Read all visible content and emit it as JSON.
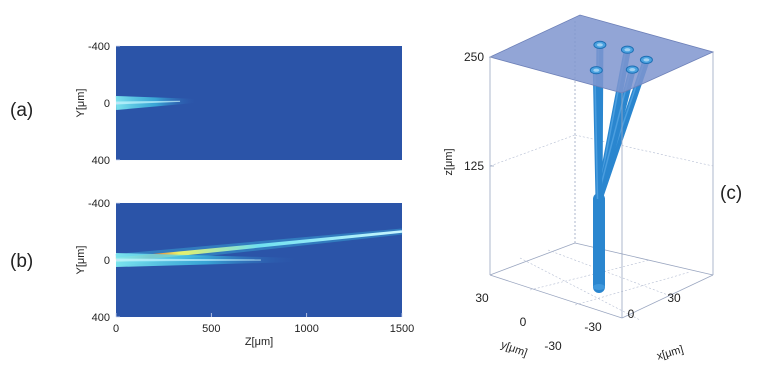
{
  "panel_labels": {
    "a": "(a)",
    "b": "(b)",
    "c": "(c)"
  },
  "colors": {
    "field_background": "#2b54a8",
    "field_low": "#2e64b8",
    "field_mid": "#3ec6e8",
    "field_high": "#e8f06a",
    "field_peak": "#e86a2a",
    "cylinder": "#2a86cf",
    "cylinder_cap": "#4ba2e0",
    "top_plane": "#7f95cf",
    "grid_line": "#8a98b8"
  },
  "chart_data": [
    {
      "id": "a",
      "type": "heatmap",
      "ylabel": "Y[μm]",
      "xlabel": "",
      "y_ticks": [
        "-400",
        "0",
        "400"
      ],
      "x_ticks": [],
      "xlim": [
        0,
        1500
      ],
      "ylim": [
        -400,
        400
      ],
      "beams": [
        {
          "x_start": 0,
          "y_start": 0,
          "x_end": 420,
          "y_end": -15,
          "intensity": "low"
        }
      ]
    },
    {
      "id": "b",
      "type": "heatmap",
      "ylabel": "Y[μm]",
      "xlabel": "Z[μm]",
      "y_ticks": [
        "-400",
        "0",
        "400"
      ],
      "x_ticks": [
        "0",
        "500",
        "1000",
        "1500"
      ],
      "xlim": [
        0,
        1500
      ],
      "ylim": [
        -400,
        400
      ],
      "beams": [
        {
          "x_start": 0,
          "y_start": 0,
          "x_end": 1500,
          "y_end": -200,
          "intensity": "high"
        },
        {
          "x_start": 0,
          "y_start": 0,
          "x_end": 950,
          "y_end": 0,
          "intensity": "low"
        }
      ]
    },
    {
      "id": "c",
      "type": "3d-waveguides",
      "zlabel": "z[μm]",
      "xlabel": "x[μm]",
      "ylabel": "y[μm]",
      "z_ticks": [
        "250",
        "125"
      ],
      "x_ticks": [
        "-30",
        "0",
        "30"
      ],
      "y_ticks": [
        "30",
        "0",
        "-30"
      ],
      "zlim": [
        0,
        250
      ],
      "xlim": [
        -30,
        30
      ],
      "ylim": [
        -30,
        30
      ],
      "common_stem": {
        "x": 0,
        "y": 0,
        "z_from": 0,
        "z_to": 100
      },
      "branch_endpoints": [
        {
          "x": -20,
          "y": 22,
          "z": 250
        },
        {
          "x": -6,
          "y": 26,
          "z": 250
        },
        {
          "x": 10,
          "y": 22,
          "z": 250
        },
        {
          "x": 14,
          "y": 8,
          "z": 250
        },
        {
          "x": 2,
          "y": -4,
          "z": 250
        }
      ]
    }
  ]
}
